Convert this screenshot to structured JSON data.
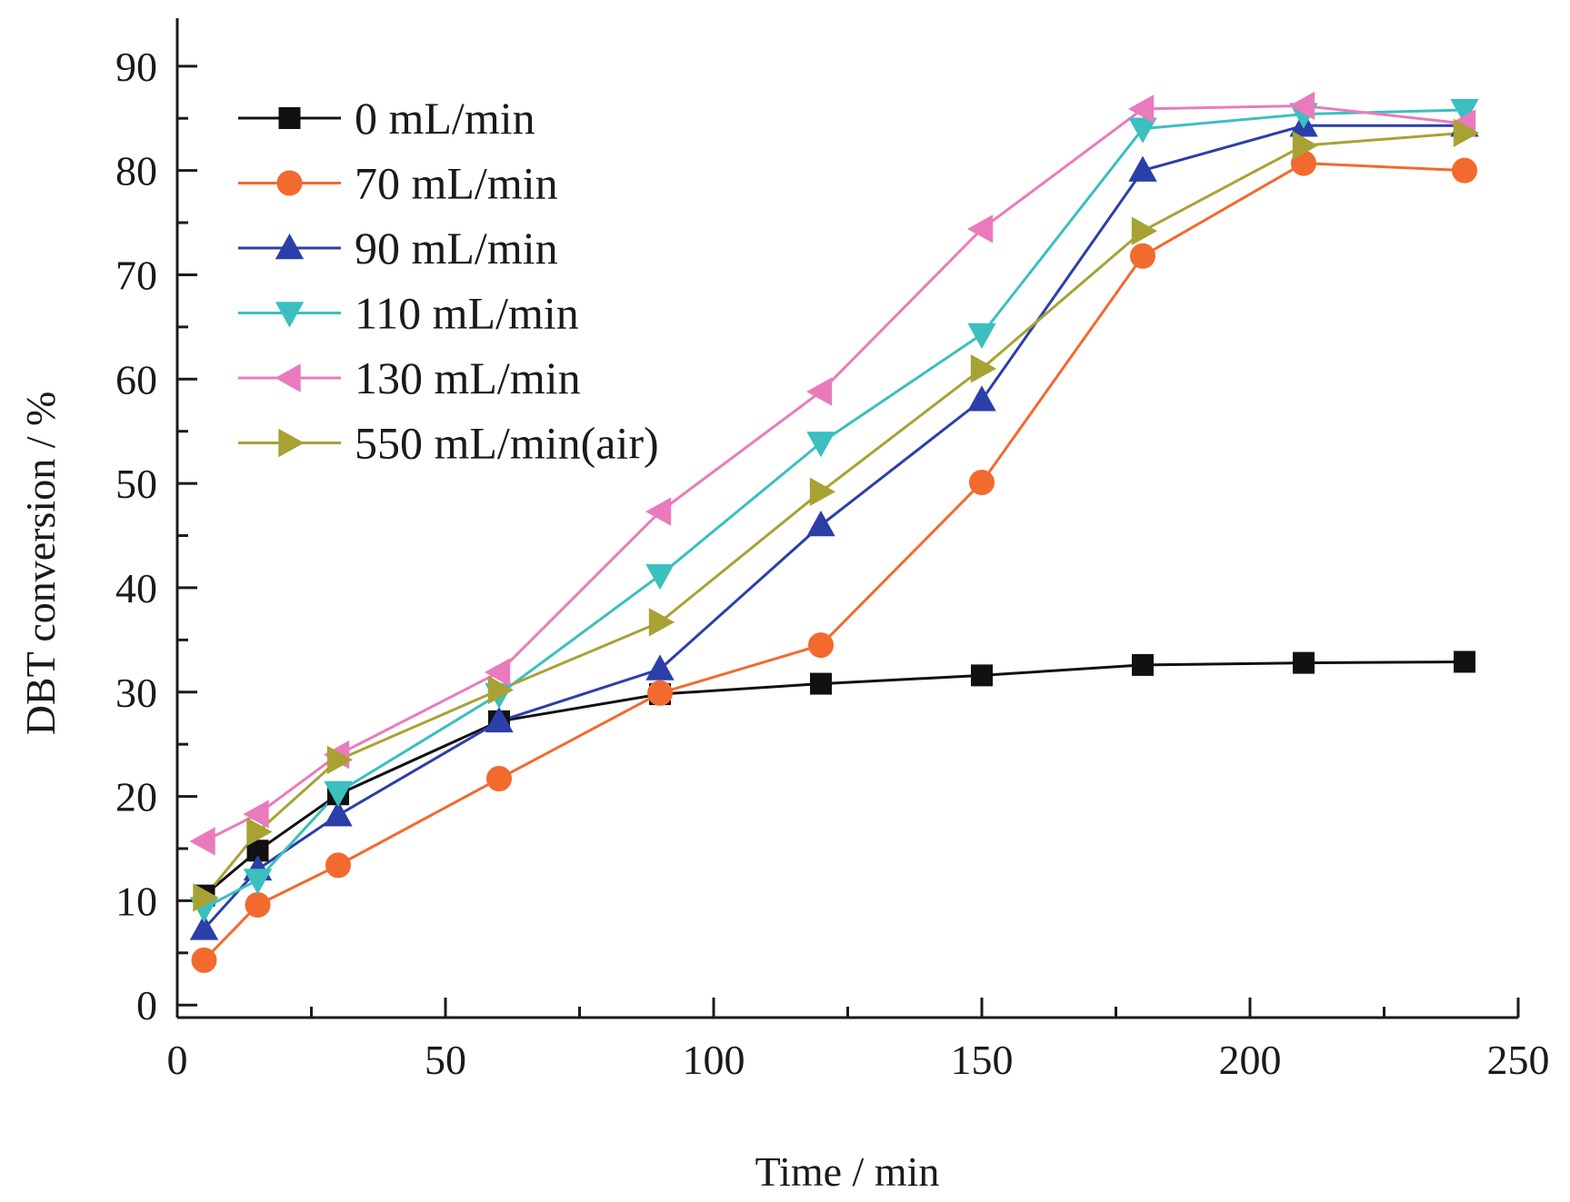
{
  "chart_data": {
    "type": "line",
    "title": "",
    "xlabel": "Time / min",
    "ylabel": "DBT conversion / %",
    "xlim": [
      0,
      250
    ],
    "ylim": [
      0,
      90
    ],
    "xticks": [
      0,
      50,
      100,
      150,
      200,
      250
    ],
    "yticks": [
      0,
      10,
      20,
      30,
      40,
      50,
      60,
      70,
      80,
      90
    ],
    "grid": false,
    "legend_position": "top-left",
    "x": [
      5,
      15,
      30,
      60,
      90,
      120,
      150,
      180,
      210,
      240
    ],
    "series": [
      {
        "name": "0 mL/min",
        "color": "#111111",
        "marker": "square",
        "values": [
          10.5,
          14.8,
          20.2,
          27.2,
          29.8,
          30.8,
          31.6,
          32.6,
          32.8,
          32.9
        ]
      },
      {
        "name": "70 mL/min",
        "color": "#f26a2e",
        "marker": "circle",
        "values": [
          4.3,
          9.6,
          13.4,
          21.7,
          29.9,
          34.5,
          50.1,
          71.8,
          80.7,
          80.0
        ]
      },
      {
        "name": "90 mL/min",
        "color": "#2b3fa8",
        "marker": "triangle-up",
        "values": [
          7.3,
          13.0,
          18.2,
          27.2,
          32.2,
          46.0,
          58.0,
          80.0,
          84.3,
          84.3
        ]
      },
      {
        "name": "110 mL/min",
        "color": "#3bbfbf",
        "marker": "triangle-down",
        "values": [
          9.3,
          12.0,
          20.4,
          29.8,
          41.2,
          53.9,
          64.3,
          84.0,
          85.4,
          85.8
        ]
      },
      {
        "name": "130 mL/min",
        "color": "#e97bbd",
        "marker": "triangle-left",
        "values": [
          15.7,
          18.3,
          24.0,
          31.9,
          47.3,
          58.8,
          74.4,
          85.9,
          86.2,
          84.5
        ]
      },
      {
        "name": "550 mL/min(air)",
        "color": "#a8a234",
        "marker": "triangle-right",
        "values": [
          10.3,
          16.6,
          23.5,
          30.2,
          36.7,
          49.2,
          61.0,
          74.2,
          82.4,
          83.6
        ]
      }
    ]
  }
}
